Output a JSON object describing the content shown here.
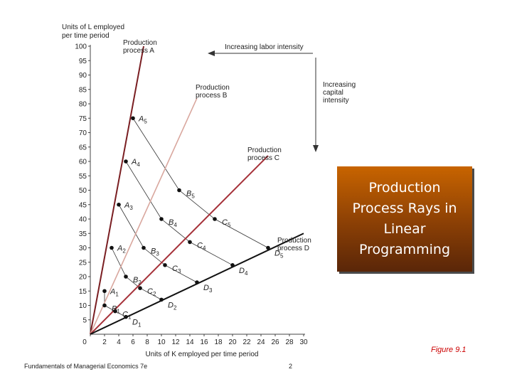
{
  "chart_data": {
    "type": "line",
    "ylabel": "Units of L employed per time period",
    "xlabel": "Units of K employed per time period",
    "xlim": [
      0,
      30
    ],
    "ylim": [
      0,
      100
    ],
    "x_ticks": [
      0,
      2,
      4,
      6,
      8,
      10,
      12,
      14,
      16,
      18,
      20,
      22,
      24,
      26,
      28,
      30
    ],
    "y_ticks": [
      5,
      10,
      15,
      20,
      25,
      30,
      35,
      40,
      45,
      50,
      55,
      60,
      65,
      70,
      75,
      80,
      85,
      90,
      95,
      100
    ],
    "rays": [
      {
        "name": "Production process A",
        "line1": "Production",
        "line2": "process A",
        "color": "#7a1e22",
        "end": [
          7.5,
          100
        ]
      },
      {
        "name": "Production process B",
        "line1": "Production",
        "line2": "process B",
        "color": "#d9a79e",
        "end": [
          15,
          82
        ]
      },
      {
        "name": "Production process C",
        "line1": "Production",
        "line2": "process C",
        "color": "#a6323a",
        "end": [
          25,
          62
        ]
      },
      {
        "name": "Production process D",
        "line1": "Production",
        "line2": "process D",
        "color": "#111111",
        "end": [
          30,
          35
        ]
      }
    ],
    "points": [
      {
        "letter": "A",
        "sub": "1",
        "x": 2,
        "y": 15
      },
      {
        "letter": "A",
        "sub": "2",
        "x": 3,
        "y": 30
      },
      {
        "letter": "A",
        "sub": "3",
        "x": 4,
        "y": 45
      },
      {
        "letter": "A",
        "sub": "4",
        "x": 5,
        "y": 60
      },
      {
        "letter": "A",
        "sub": "5",
        "x": 6,
        "y": 75
      },
      {
        "letter": "B",
        "sub": "1",
        "x": 2,
        "y": 10
      },
      {
        "letter": "B",
        "sub": "2",
        "x": 5,
        "y": 20
      },
      {
        "letter": "B",
        "sub": "3",
        "x": 7.5,
        "y": 30
      },
      {
        "letter": "B",
        "sub": "4",
        "x": 10,
        "y": 40
      },
      {
        "letter": "B",
        "sub": "5",
        "x": 12.5,
        "y": 50
      },
      {
        "letter": "C",
        "sub": "1",
        "x": 3.5,
        "y": 8
      },
      {
        "letter": "C",
        "sub": "2",
        "x": 7,
        "y": 16
      },
      {
        "letter": "C",
        "sub": "3",
        "x": 10.5,
        "y": 24
      },
      {
        "letter": "C",
        "sub": "4",
        "x": 14,
        "y": 32
      },
      {
        "letter": "C",
        "sub": "5",
        "x": 17.5,
        "y": 40
      },
      {
        "letter": "D",
        "sub": "1",
        "x": 5,
        "y": 6
      },
      {
        "letter": "D",
        "sub": "2",
        "x": 10,
        "y": 12
      },
      {
        "letter": "D",
        "sub": "3",
        "x": 15,
        "y": 18
      },
      {
        "letter": "D",
        "sub": "4",
        "x": 20,
        "y": 24
      },
      {
        "letter": "D",
        "sub": "5",
        "x": 25,
        "y": 30
      }
    ],
    "isoquants": [
      [
        "A1",
        "B1",
        "C1",
        "D1"
      ],
      [
        "A2",
        "B2",
        "C2",
        "D2"
      ],
      [
        "A3",
        "B3",
        "C3",
        "D3"
      ],
      [
        "A4",
        "B4",
        "C4",
        "D4"
      ],
      [
        "A5",
        "B5",
        "C5",
        "D5"
      ]
    ],
    "annotations": {
      "labor": "Increasing labor intensity",
      "capital": [
        "Increasing",
        "capital",
        "intensity"
      ]
    }
  },
  "slide": {
    "title": "Production Process Rays in Linear Programming",
    "figure": "Figure 9.1",
    "footer_left": "Fundamentals of Managerial Economics 7e",
    "page": "2"
  }
}
